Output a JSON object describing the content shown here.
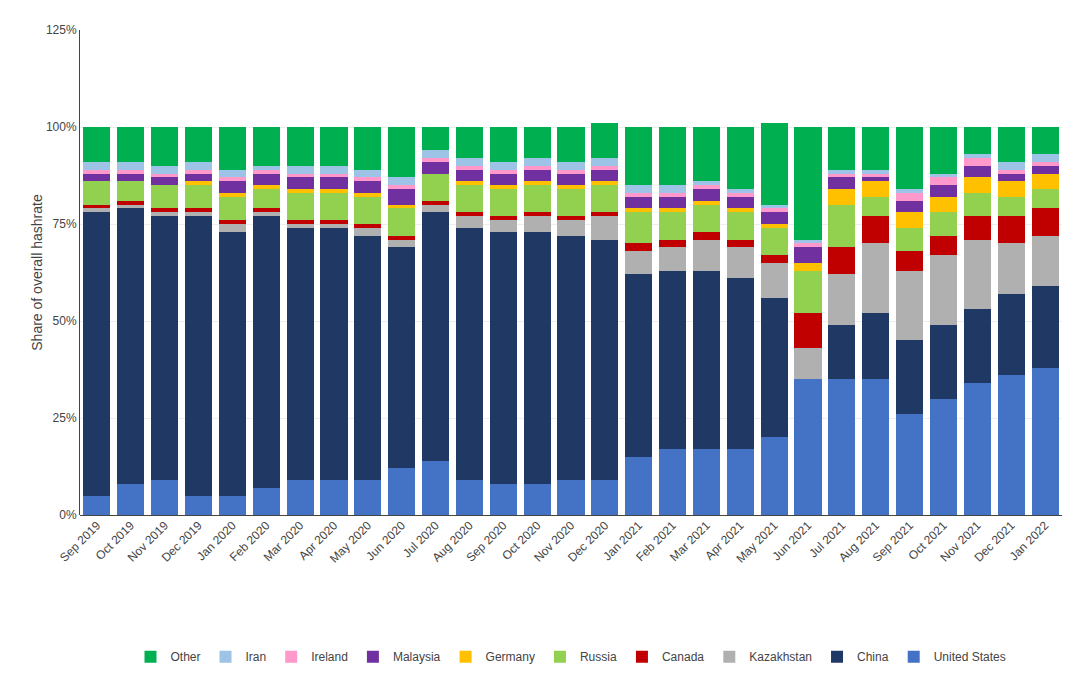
{
  "chart_data": {
    "type": "bar",
    "stacked": true,
    "ylabel": "Share of overall hashrate",
    "categories": [
      "Sep 2019",
      "Oct 2019",
      "Nov 2019",
      "Dec 2019",
      "Jan 2020",
      "Feb 2020",
      "Mar 2020",
      "Apr 2020",
      "May 2020",
      "Jun 2020",
      "Jul 2020",
      "Aug 2020",
      "Sep 2020",
      "Oct 2020",
      "Nov 2020",
      "Dec 2020",
      "Jan 2021",
      "Feb 2021",
      "Mar 2021",
      "Apr 2021",
      "May 2021",
      "Jun 2021",
      "Jul 2021",
      "Aug 2021",
      "Sep 2021",
      "Oct 2021",
      "Nov 2021",
      "Dec 2021",
      "Jan 2022"
    ],
    "series": [
      {
        "name": "United States",
        "color": "#4472C4",
        "values": [
          5,
          8,
          9,
          5,
          5,
          7,
          9,
          9,
          9,
          12,
          14,
          9,
          8,
          8,
          9,
          9,
          15,
          17,
          17,
          17,
          20,
          35,
          35,
          35,
          26,
          30,
          34,
          36,
          38
        ]
      },
      {
        "name": "China",
        "color": "#1F3864",
        "values": [
          73,
          71,
          68,
          72,
          68,
          70,
          65,
          65,
          63,
          57,
          64,
          65,
          65,
          65,
          63,
          62,
          47,
          46,
          46,
          44,
          36,
          0,
          14,
          17,
          19,
          19,
          19,
          21,
          21
        ]
      },
      {
        "name": "Kazakhstan",
        "color": "#B0B0B0",
        "values": [
          1,
          1,
          1,
          1,
          2,
          1,
          1,
          1,
          2,
          2,
          2,
          3,
          3,
          4,
          4,
          6,
          6,
          6,
          8,
          8,
          9,
          8,
          13,
          18,
          18,
          18,
          18,
          13,
          13
        ]
      },
      {
        "name": "Canada",
        "color": "#C00000",
        "values": [
          1,
          1,
          1,
          1,
          1,
          1,
          1,
          1,
          1,
          1,
          1,
          1,
          1,
          1,
          1,
          1,
          2,
          2,
          2,
          2,
          2,
          9,
          7,
          7,
          5,
          5,
          6,
          7,
          7
        ]
      },
      {
        "name": "Russia",
        "color": "#92D050",
        "values": [
          6,
          5,
          6,
          6,
          6,
          5,
          7,
          7,
          7,
          7,
          7,
          7,
          7,
          7,
          7,
          7,
          8,
          7,
          7,
          7,
          7,
          11,
          11,
          5,
          6,
          6,
          6,
          5,
          5
        ]
      },
      {
        "name": "Germany",
        "color": "#FFC000",
        "values": [
          0,
          0,
          0,
          1,
          1,
          1,
          1,
          1,
          1,
          1,
          0,
          1,
          1,
          1,
          1,
          1,
          1,
          1,
          1,
          1,
          1,
          2,
          4,
          4,
          4,
          4,
          4,
          4,
          4
        ]
      },
      {
        "name": "Malaysia",
        "color": "#7030A0",
        "values": [
          2,
          2,
          2,
          2,
          3,
          3,
          3,
          3,
          3,
          4,
          3,
          3,
          3,
          3,
          3,
          3,
          3,
          3,
          3,
          3,
          3,
          4,
          3,
          1,
          3,
          3,
          3,
          2,
          2
        ]
      },
      {
        "name": "Ireland",
        "color": "#FF99CC",
        "values": [
          1,
          1,
          1,
          1,
          1,
          1,
          1,
          1,
          1,
          1,
          1,
          1,
          1,
          1,
          1,
          1,
          1,
          1,
          1,
          1,
          1,
          1,
          1,
          1,
          2,
          2,
          2,
          1,
          1
        ]
      },
      {
        "name": "Iran",
        "color": "#9DC3E6",
        "values": [
          2,
          2,
          2,
          2,
          2,
          1,
          2,
          2,
          2,
          2,
          2,
          2,
          2,
          2,
          2,
          2,
          2,
          2,
          1,
          1,
          1,
          1,
          1,
          1,
          1,
          1,
          1,
          2,
          2
        ]
      },
      {
        "name": "Other",
        "color": "#00B050",
        "values": [
          9,
          9,
          10,
          9,
          11,
          10,
          10,
          10,
          11,
          13,
          6,
          8,
          9,
          8,
          9,
          9,
          15,
          15,
          14,
          16,
          21,
          29,
          11,
          11,
          16,
          12,
          7,
          9,
          7
        ]
      }
    ],
    "ylim": [
      0,
      125
    ],
    "yticks": [
      {
        "value": 0,
        "label": "0%"
      },
      {
        "value": 25,
        "label": "25%"
      },
      {
        "value": 50,
        "label": "50%"
      },
      {
        "value": 75,
        "label": "75%"
      },
      {
        "value": 100,
        "label": "100%"
      },
      {
        "value": 125,
        "label": "125%"
      }
    ],
    "grid": true,
    "legend": "bottom"
  }
}
